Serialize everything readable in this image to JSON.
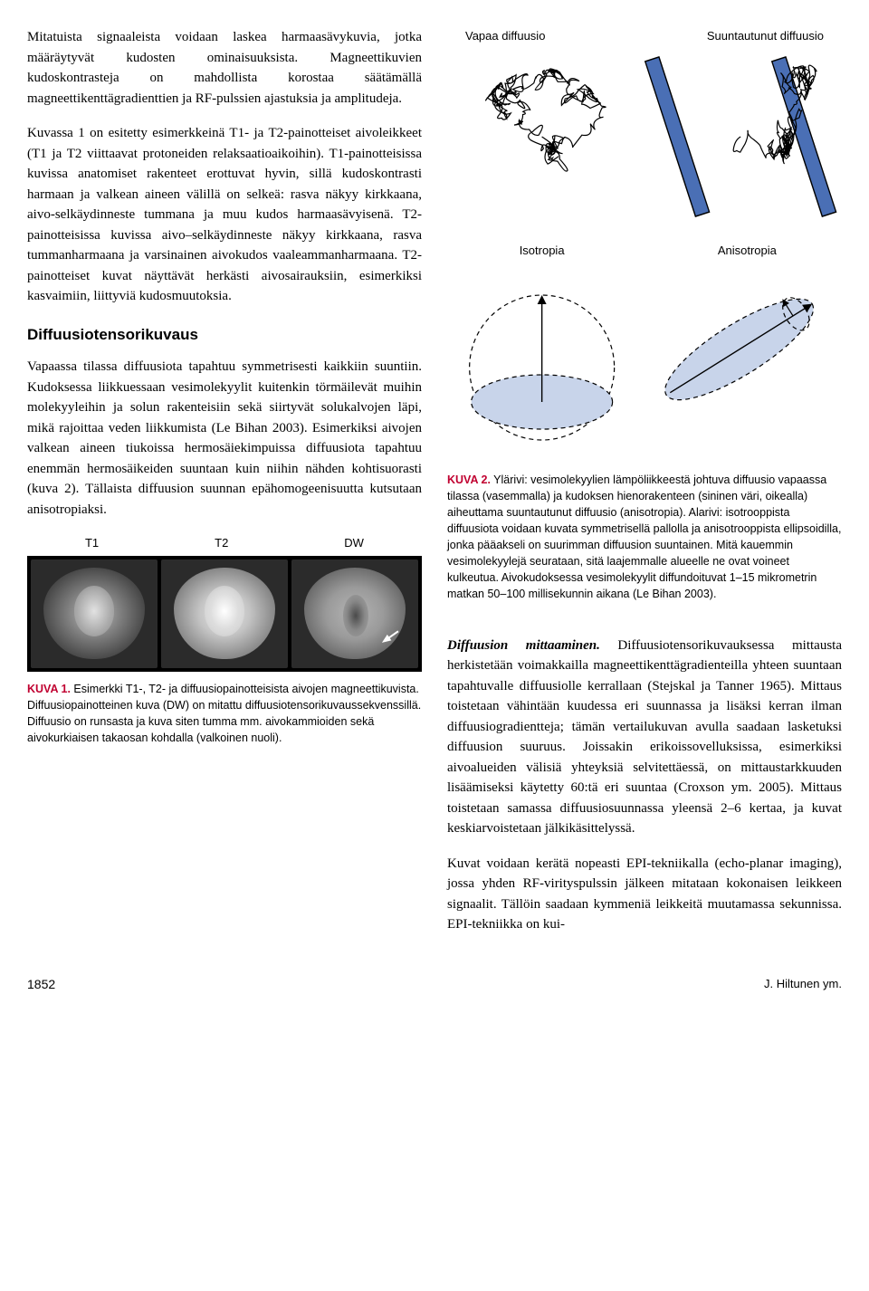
{
  "left_column": {
    "para1": "Mitatuista signaaleista voidaan laskea harmaasävykuvia, jotka määräytyvät kudosten ominaisuuksista. Magneettikuvien kudoskontrasteja on mahdollista korostaa säätämällä magneettikenttägradienttien ja RF-pulssien ajastuksia ja amplitudeja.",
    "para2": "Kuvassa 1 on esitetty esimerkkeinä T1- ja T2-painotteiset aivoleikkeet (T1 ja T2 viittaavat protoneiden relaksaatioaikoihin). T1-painotteisissa kuvissa anatomiset rakenteet erottuvat hyvin, sillä kudoskontrasti harmaan ja valkean aineen välillä on selkeä: rasva näkyy kirkkaana, aivo-selkäydinneste tummana ja muu kudos harmaasävyisenä. T2-painotteisissa kuvissa aivo–selkäydinneste näkyy kirkkaana, rasva tummanharmaana ja varsinainen aivokudos vaaleammanharmaana. T2-painotteiset kuvat näyttävät herkästi aivosairauksiin, esimerkiksi kasvaimiin, liittyviä kudosmuutoksia.",
    "section_heading": "Diffuusiotensorikuvaus",
    "para3": "Vapaassa tilassa diffuusiota tapahtuu symmetrisesti kaikkiin suuntiin. Kudoksessa liikkuessaan vesimolekyylit kuitenkin törmäilevät muihin molekyyleihin ja solun rakenteisiin sekä siirtyvät solukalvojen läpi, mikä rajoittaa veden liikkumista (Le Bihan 2003). Esimerkiksi aivojen valkean aineen tiukoissa hermosäiekimpuissa diffuusiota tapahtuu enemmän hermosäikeiden suuntaan kuin niihin nähden kohtisuorasti (kuva 2). Tällaista diffuusion suunnan epähomogeenisuutta kutsutaan anisotropiaksi.",
    "fig1_labels": {
      "t1": "T1",
      "t2": "T2",
      "dw": "DW"
    },
    "fig1_caption_label": "KUVA 1.",
    "fig1_caption_text": " Esimerkki T1-, T2- ja diffuusiopainotteisista aivojen magneettikuvista. Diffuusiopainotteinen kuva (DW) on mitattu diffuusiotensorikuvaussekvenssillä. Diffuusio on runsasta ja kuva siten tumma mm. aivokammioiden sekä aivokurkiaisen takaosan kohdalla (valkoinen nuoli)."
  },
  "right_column": {
    "fig2_top_labels": {
      "left": "Vapaa diffuusio",
      "right": "Suuntautunut diffuusio"
    },
    "fig2_mid_labels": {
      "left": "Isotropia",
      "right": "Anisotropia"
    },
    "fig2_caption_label": "KUVA 2.",
    "fig2_caption_text": " Ylärivi: vesimolekyylien lämpöliikkeestä johtuva diffuusio vapaassa tilassa (vasemmalla) ja kudoksen hienorakenteen (sininen väri, oikealla) aiheuttama suuntautunut diffuusio (anisotropia). Alarivi: isotrooppista diffuusiota voidaan kuvata symmetrisellä pallolla ja anisotrooppista ellipsoidilla, jonka pääakseli on suurimman diffuusion suuntainen. Mitä kauemmin vesimolekyylejä seurataan, sitä laajemmalle alueelle ne ovat voineet kulkeutua. Aivokudoksessa vesimolekyylit diffundoituvat 1–15 mikrometrin matkan 50–100 millisekunnin aikana (Le Bihan 2003).",
    "para4_runin": "Diffuusion mittaaminen.",
    "para4": " Diffuusiotensorikuvauksessa mittausta herkistetään voimakkailla magneettikenttägradienteilla yhteen suuntaan tapahtuvalle diffuusiolle kerrallaan (Stejskal ja Tanner 1965). Mittaus toistetaan vähintään kuudessa eri suunnassa ja lisäksi kerran ilman diffuusiogradientteja; tämän vertailukuvan avulla saadaan lasketuksi diffuusion suuruus. Joissakin erikoissovelluksissa, esimerkiksi aivoalueiden välisiä yhteyksiä selvitettäessä, on mittaustarkkuuden lisäämiseksi käytetty 60:tä eri suuntaa (Croxson ym. 2005). Mittaus toistetaan samassa diffuusiosuunnassa yleensä 2–6 kertaa, ja kuvat keskiarvoistetaan jälkikäsittelyssä.",
    "para5": "Kuvat voidaan kerätä nopeasti EPI-tekniikalla (echo-planar imaging), jossa yhden RF-virityspulssin jälkeen mitataan kokonaisen leikkeen signaalit. Tällöin saadaan kymmeniä leikkeitä muutamassa sekunnissa. EPI-tekniikka on kui-"
  },
  "footer": {
    "page": "1852",
    "author": "J. Hiltunen ym."
  },
  "colors": {
    "kuva_red": "#c00030",
    "membrane_blue": "#4a6fb5",
    "ellipse_fill": "#c8d4ea"
  }
}
